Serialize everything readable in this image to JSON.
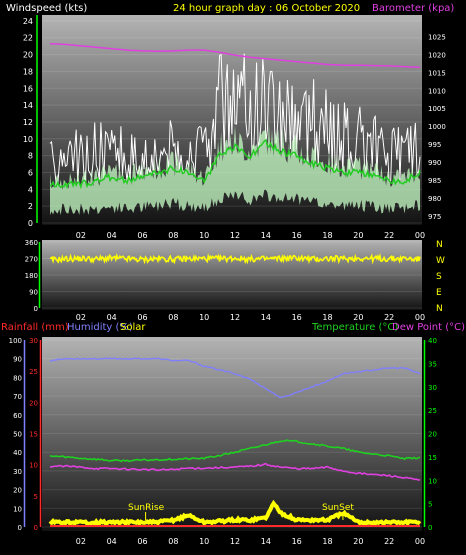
{
  "header": {
    "windspeed_label": "Windspeed (kts)",
    "title": "24 hour graph day : 06 October 2020",
    "barometer_label": "Barometer (kpa)"
  },
  "colors": {
    "wind_gust": "#ffffff",
    "wind_avg_fill": "#c8ffc8",
    "wind_avg_line": "#22cc22",
    "barometer": "#e040e0",
    "direction": "#ffff00",
    "rainfall": "#ff2a2a",
    "humidity": "#8080ff",
    "solar": "#ffff00",
    "temperature": "#20d020",
    "dew_point": "#e040e0",
    "axis_green": "#00ff00",
    "axis_yellow": "#ffff00"
  },
  "chart_data": [
    {
      "type": "area",
      "panel": "wind_barometer",
      "x_ticks": [
        "02",
        "04",
        "06",
        "08",
        "10",
        "12",
        "14",
        "16",
        "18",
        "20",
        "22",
        "00"
      ],
      "y_left_ticks": [
        "0",
        "2",
        "4",
        "6",
        "8",
        "10",
        "12",
        "14",
        "16",
        "18",
        "20",
        "22",
        "24"
      ],
      "y_left_range": [
        0,
        24.7
      ],
      "y_right_ticks": [
        "975",
        "980",
        "985",
        "990",
        "995",
        "1000",
        "1005",
        "1010",
        "1015",
        "1020",
        "1025"
      ],
      "y_right_range": [
        973,
        1031
      ],
      "series": [
        {
          "name": "Windspeed (kts)",
          "role": "gust",
          "x": [
            0,
            1,
            2,
            3,
            4,
            5,
            6,
            7,
            8,
            9,
            10,
            11,
            12,
            13,
            14,
            15,
            16,
            17,
            18,
            19,
            20,
            21,
            22,
            23,
            24
          ],
          "values": [
            7,
            7.5,
            8,
            8.5,
            8,
            8,
            8,
            8.5,
            9,
            8,
            8,
            14,
            15,
            14,
            15,
            14,
            13,
            12,
            11,
            10,
            10,
            9,
            8,
            8,
            10
          ]
        },
        {
          "name": "Windspeed (kts)",
          "role": "average",
          "x": [
            0,
            1,
            2,
            3,
            4,
            5,
            6,
            7,
            8,
            9,
            10,
            11,
            12,
            13,
            14,
            15,
            16,
            17,
            18,
            19,
            20,
            21,
            22,
            23,
            24
          ],
          "values": [
            4.5,
            4.5,
            4.6,
            5,
            5.5,
            5,
            5.5,
            6,
            6.5,
            6,
            5,
            8,
            9,
            8,
            9.5,
            8.5,
            8,
            7,
            6.5,
            6,
            6,
            5.5,
            5,
            5,
            6
          ]
        },
        {
          "name": "Barometer (kpa)",
          "x": [
            0,
            1,
            2,
            3,
            4,
            5,
            6,
            7,
            8,
            9,
            10,
            11,
            12,
            13,
            14,
            15,
            16,
            17,
            18,
            19,
            20,
            21,
            22,
            23,
            24
          ],
          "values": [
            1023,
            1022.8,
            1022.4,
            1022,
            1021.6,
            1021.2,
            1021,
            1020.9,
            1021,
            1021.2,
            1021.2,
            1020.6,
            1019.8,
            1019.2,
            1018.8,
            1018.4,
            1018,
            1017.6,
            1017.2,
            1017,
            1017,
            1016.9,
            1016.8,
            1016.6,
            1016.4
          ]
        }
      ]
    },
    {
      "type": "line",
      "panel": "wind_direction",
      "x_ticks": [
        "02",
        "04",
        "06",
        "08",
        "10",
        "12",
        "14",
        "16",
        "18",
        "20",
        "22",
        "00"
      ],
      "y_left_ticks": [
        "0",
        "90",
        "180",
        "270",
        "360"
      ],
      "y_range": [
        0,
        360
      ],
      "compass_labels": [
        "N",
        "W",
        "S",
        "E",
        "N"
      ],
      "series": [
        {
          "name": "Wind direction",
          "x": [
            0,
            1,
            2,
            3,
            4,
            5,
            6,
            7,
            8,
            9,
            10,
            11,
            12,
            13,
            14,
            15,
            16,
            17,
            18,
            19,
            20,
            21,
            22,
            23,
            24
          ],
          "values": [
            262,
            268,
            270,
            266,
            272,
            268,
            264,
            270,
            266,
            268,
            270,
            268,
            272,
            266,
            268,
            270,
            274,
            266,
            270,
            268,
            272,
            270,
            268,
            270,
            266
          ]
        }
      ]
    },
    {
      "type": "line",
      "panel": "rain_humidity_temperature",
      "labels": {
        "rainfall": "Rainfall (mm)",
        "humidity": "Humidity (%)",
        "solar": "Solar",
        "temperature": "Temperature (°C)",
        "dew_point": "Dew Point (°C)",
        "sunrise": "SunRise",
        "sunset": "SunSet"
      },
      "x_ticks": [
        "02",
        "04",
        "06",
        "08",
        "10",
        "12",
        "14",
        "16",
        "18",
        "20",
        "22",
        "00"
      ],
      "y_humidity_ticks": [
        "0",
        "10",
        "20",
        "30",
        "40",
        "50",
        "60",
        "70",
        "80",
        "90",
        "100"
      ],
      "y_rain_ticks": [
        "0",
        "5",
        "10",
        "15",
        "20",
        "25",
        "30"
      ],
      "y_temp_ticks": [
        "0",
        "5",
        "10",
        "15",
        "20",
        "25",
        "30",
        "35",
        "40"
      ],
      "humidity_range": [
        0,
        100
      ],
      "rain_range": [
        0,
        30
      ],
      "temp_range": [
        0,
        40
      ],
      "sunrise_hour": 6.2,
      "sunset_hour": 19.0,
      "series": [
        {
          "name": "Humidity (%)",
          "x": [
            0,
            1,
            2,
            3,
            4,
            5,
            6,
            7,
            8,
            9,
            10,
            11,
            12,
            13,
            14,
            15,
            16,
            17,
            18,
            19,
            20,
            21,
            22,
            23,
            24
          ],
          "values": [
            89,
            90,
            90,
            90,
            90,
            90,
            90,
            90,
            89,
            89,
            86,
            84,
            82,
            79,
            74,
            69,
            72,
            75,
            78,
            82,
            83,
            84,
            85,
            85,
            82
          ]
        },
        {
          "name": "Temperature (°C)",
          "x": [
            0,
            1,
            2,
            3,
            4,
            5,
            6,
            7,
            8,
            9,
            10,
            11,
            12,
            13,
            14,
            15,
            16,
            17,
            18,
            19,
            20,
            21,
            22,
            23,
            24
          ],
          "values": [
            15.2,
            15,
            14.7,
            14.5,
            14.2,
            14.2,
            14.3,
            14.4,
            14.5,
            14.6,
            14.7,
            15.3,
            16,
            16.8,
            17.6,
            18.5,
            18.3,
            17.8,
            17.3,
            16.8,
            16,
            15.6,
            15.2,
            14.6,
            14.8
          ]
        },
        {
          "name": "Dew Point (°C)",
          "x": [
            0,
            1,
            2,
            3,
            4,
            5,
            6,
            7,
            8,
            9,
            10,
            11,
            12,
            13,
            14,
            15,
            16,
            17,
            18,
            19,
            20,
            21,
            22,
            23,
            24
          ],
          "values": [
            13,
            13,
            12.8,
            12.5,
            12.5,
            12.4,
            12.3,
            12.2,
            12.3,
            12.6,
            12.6,
            12.7,
            12.8,
            13,
            13.4,
            12.8,
            12.5,
            12.5,
            12.8,
            12,
            11.5,
            11.2,
            11,
            10.5,
            10
          ]
        },
        {
          "name": "Rainfall (mm)",
          "x": [
            0,
            24
          ],
          "values": [
            0,
            0
          ]
        },
        {
          "name": "Solar",
          "x": [
            0,
            2,
            4,
            6,
            7,
            8,
            9,
            10,
            12,
            13,
            14,
            14.5,
            15,
            16,
            17,
            18,
            19,
            20,
            22,
            24
          ],
          "values": [
            1,
            1,
            1,
            1,
            1,
            1.5,
            2.5,
            1,
            1.5,
            1.5,
            2,
            5,
            3,
            1.5,
            1.5,
            1.5,
            3,
            1,
            1,
            1
          ]
        }
      ]
    }
  ]
}
